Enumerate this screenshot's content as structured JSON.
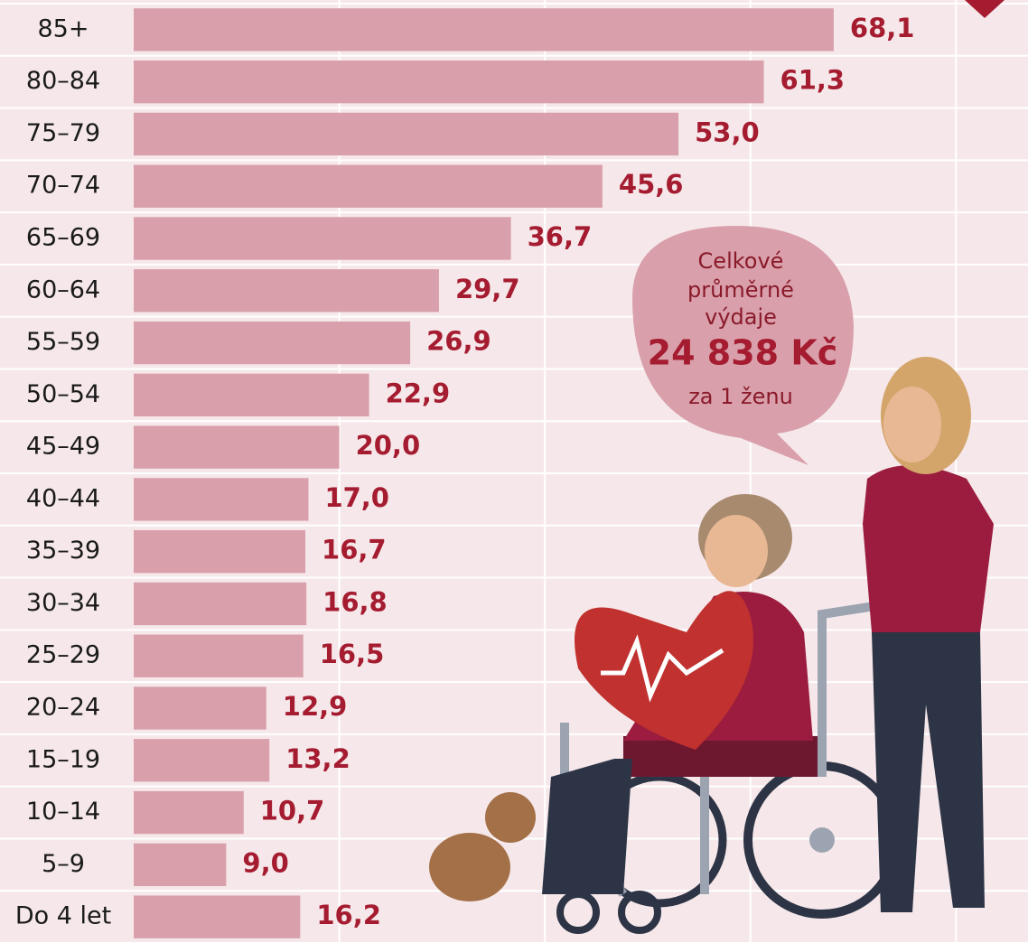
{
  "chart_data": {
    "type": "barh",
    "categories": [
      "85+",
      "80–84",
      "75–79",
      "70–74",
      "65–69",
      "60–64",
      "55–59",
      "50–54",
      "45–49",
      "40–44",
      "35–39",
      "30–34",
      "25–29",
      "20–24",
      "15–19",
      "10–14",
      "5–9",
      "Do 4 let"
    ],
    "values": [
      68.1,
      61.3,
      53.0,
      45.6,
      36.7,
      29.7,
      26.9,
      22.9,
      20.0,
      17.0,
      16.7,
      16.8,
      16.5,
      12.9,
      13.2,
      10.7,
      9.0,
      16.2
    ],
    "value_labels": [
      "68,1",
      "61,3",
      "53,0",
      "45,6",
      "36,7",
      "29,7",
      "26,9",
      "22,9",
      "20,0",
      "17,0",
      "16,7",
      "16,8",
      "16,5",
      "12,9",
      "13,2",
      "10,7",
      "9,0",
      "16,2"
    ],
    "color": "#d9a0ab",
    "label_color": "#a51c30",
    "xlim": [
      0,
      87
    ],
    "xticks": [
      20,
      40,
      60,
      80
    ],
    "grid": true,
    "annotation": {
      "lines": [
        "Celkové",
        "průměrné",
        "výdaje"
      ],
      "total": "24 838 Kč",
      "note": "za 1 ženu"
    }
  }
}
